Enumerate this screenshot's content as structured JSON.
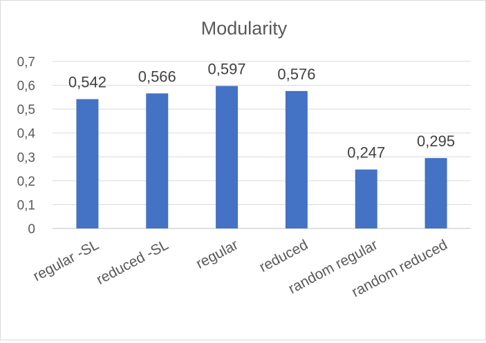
{
  "chart_data": {
    "type": "bar",
    "title": "Modularity",
    "xlabel": "",
    "ylabel": "",
    "categories": [
      "regular -SL",
      "reduced -SL",
      "regular",
      "reduced",
      "random regular",
      "random reduced"
    ],
    "values": [
      0.542,
      0.566,
      0.597,
      0.576,
      0.247,
      0.295
    ],
    "data_labels": [
      "0,542",
      "0,566",
      "0,597",
      "0,576",
      "0,247",
      "0,295"
    ],
    "yticks": [
      0,
      0.1,
      0.2,
      0.3,
      0.4,
      0.5,
      0.6,
      0.7
    ],
    "ytick_labels": [
      "0",
      "0,1",
      "0,2",
      "0,3",
      "0,4",
      "0,5",
      "0,6",
      "0,7"
    ],
    "ylim": [
      0,
      0.7
    ],
    "grid": true,
    "legend": "none",
    "bar_color": "#4472c4"
  }
}
